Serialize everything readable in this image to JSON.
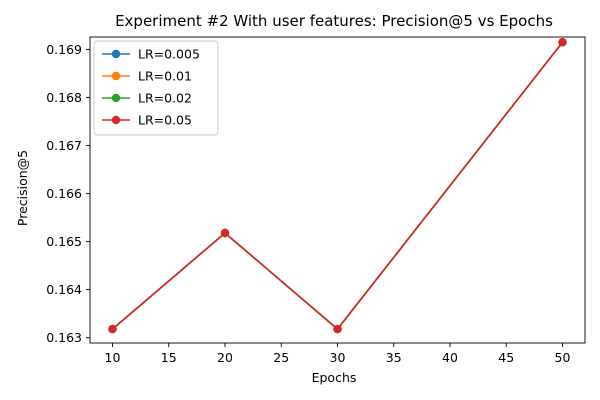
{
  "chart_data": {
    "type": "line",
    "title": "Experiment #2 With user features: Precision@5 vs Epochs",
    "xlabel": "Epochs",
    "ylabel": "Precision@5",
    "x": [
      10,
      20,
      30,
      50
    ],
    "xlim": [
      8,
      52
    ],
    "ylim": [
      0.16289,
      0.16926
    ],
    "xticks": [
      10,
      15,
      20,
      25,
      30,
      35,
      40,
      45,
      50
    ],
    "xtick_labels": [
      "10",
      "15",
      "20",
      "25",
      "30",
      "35",
      "40",
      "45",
      "50"
    ],
    "yticks": [
      0.163,
      0.164,
      0.165,
      0.166,
      0.167,
      0.168,
      0.169
    ],
    "ytick_labels": [
      "0.163",
      "0.164",
      "0.165",
      "0.166",
      "0.167",
      "0.168",
      "0.169"
    ],
    "grid": false,
    "legend_position": "upper-left",
    "series": [
      {
        "name": "LR=0.005",
        "color": "#1f77b4",
        "values": [
          0.16318,
          0.16518,
          0.16318,
          0.16915
        ]
      },
      {
        "name": "LR=0.01",
        "color": "#ff7f0e",
        "values": [
          0.16318,
          0.16518,
          0.16318,
          0.16915
        ]
      },
      {
        "name": "LR=0.02",
        "color": "#2ca02c",
        "values": [
          0.16318,
          0.16518,
          0.16318,
          0.16915
        ]
      },
      {
        "name": "LR=0.05",
        "color": "#d62728",
        "values": [
          0.16318,
          0.16518,
          0.16318,
          0.16915
        ]
      }
    ]
  }
}
